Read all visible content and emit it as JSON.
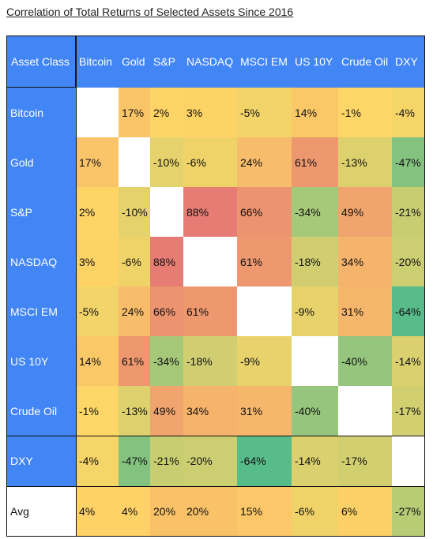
{
  "title": "Correlation of Total Returns of Selected Assets Since 2016",
  "chart_data": {
    "type": "heatmap",
    "title": "Correlation of Total Returns of Selected Assets Since 2016",
    "corner_label": "Asset Class",
    "columns": [
      "Bitcoin",
      "Gold",
      "S&P",
      "NASDAQ",
      "MSCI EM",
      "US 10Y",
      "Crude Oil",
      "DXY"
    ],
    "rows": [
      {
        "label": "Bitcoin",
        "values": [
          null,
          17,
          2,
          3,
          -5,
          14,
          -1,
          -4
        ]
      },
      {
        "label": "Gold",
        "values": [
          17,
          null,
          -10,
          -6,
          24,
          61,
          -13,
          -47
        ]
      },
      {
        "label": "S&P",
        "values": [
          2,
          -10,
          null,
          88,
          66,
          -34,
          49,
          -21
        ]
      },
      {
        "label": "NASDAQ",
        "values": [
          3,
          -6,
          88,
          null,
          61,
          -18,
          34,
          -20
        ]
      },
      {
        "label": "MSCI EM",
        "values": [
          -5,
          24,
          66,
          61,
          null,
          -9,
          31,
          -64
        ]
      },
      {
        "label": "US 10Y",
        "values": [
          14,
          61,
          -34,
          -18,
          -9,
          null,
          -40,
          -14
        ]
      },
      {
        "label": "Crude Oil",
        "values": [
          -1,
          -13,
          49,
          34,
          31,
          -40,
          null,
          -17
        ]
      },
      {
        "label": "DXY",
        "values": [
          -4,
          -47,
          -21,
          -20,
          -64,
          -14,
          -17,
          null
        ]
      }
    ],
    "avg_row": {
      "label": "Avg",
      "values": [
        4,
        4,
        20,
        20,
        15,
        -6,
        6,
        -27
      ]
    },
    "value_suffix": "%",
    "colors": {
      "header": "#4285f4",
      "scale_low": "#57bb8a",
      "scale_mid": "#ffd666",
      "scale_high": "#e67c73"
    }
  }
}
